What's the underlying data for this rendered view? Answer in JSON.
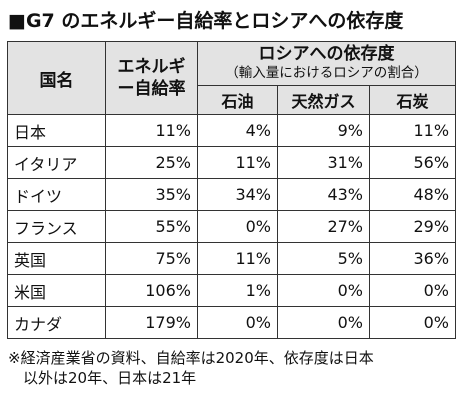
{
  "title": "■G7 のエネルギー自給率とロシアへの依存度",
  "table": {
    "header_country": "国名",
    "header_self_line1": "エネルギ",
    "header_self_line2": "ー自給率",
    "header_dependence": "ロシアへの依存度",
    "header_dependence_sub": "（輸入量におけるロシアの割合）",
    "header_oil": "石油",
    "header_gas": "天然ガス",
    "header_coal": "石炭",
    "rows": [
      {
        "country": "日本",
        "self": "11%",
        "oil": "4%",
        "gas": "9%",
        "coal": "11%"
      },
      {
        "country": "イタリア",
        "self": "25%",
        "oil": "11%",
        "gas": "31%",
        "coal": "56%"
      },
      {
        "country": "ドイツ",
        "self": "35%",
        "oil": "34%",
        "gas": "43%",
        "coal": "48%"
      },
      {
        "country": "フランス",
        "self": "55%",
        "oil": "0%",
        "gas": "27%",
        "coal": "29%"
      },
      {
        "country": "英国",
        "self": "75%",
        "oil": "11%",
        "gas": "5%",
        "coal": "36%"
      },
      {
        "country": "米国",
        "self": "106%",
        "oil": "1%",
        "gas": "0%",
        "coal": "0%"
      },
      {
        "country": "カナダ",
        "self": "179%",
        "oil": "0%",
        "gas": "0%",
        "coal": "0%"
      }
    ]
  },
  "note_line1": "※経済産業省の資料、自給率は2020年、依存度は日本",
  "note_line2": "以外は20年、日本は21年"
}
